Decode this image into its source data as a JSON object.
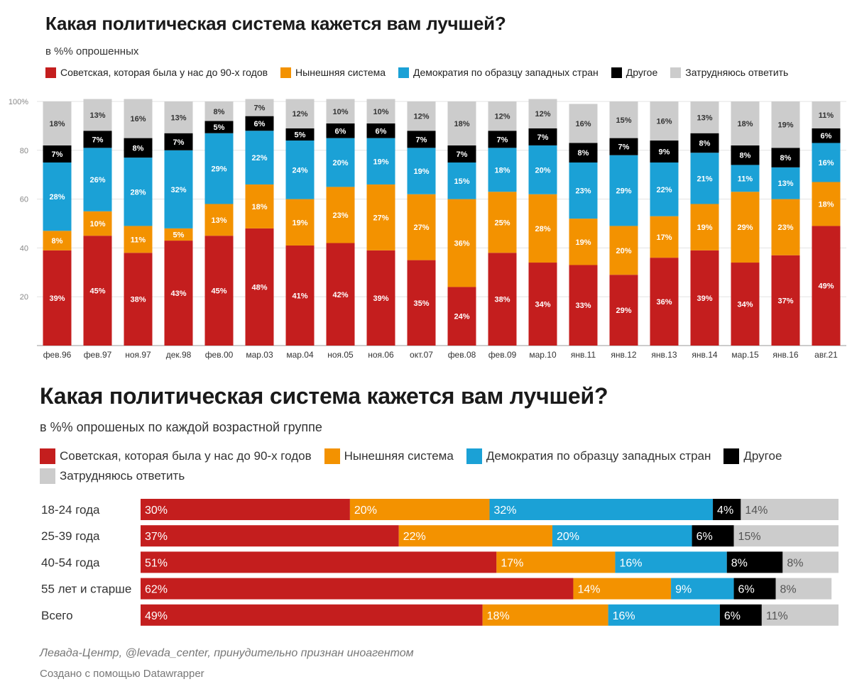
{
  "colors": {
    "soviet": "#c41e1e",
    "current": "#f39200",
    "western": "#1ba1d6",
    "other": "#000000",
    "unsure": "#cccccc"
  },
  "chart_top": {
    "title": "Какая политическая система кажется вам лучшей?",
    "subtitle": "в %% опрошенных",
    "legend": [
      {
        "key": "soviet",
        "label": "Советская, которая была у нас до 90-х годов"
      },
      {
        "key": "current",
        "label": "Нынешняя система"
      },
      {
        "key": "western",
        "label": "Демократия по образцу западных стран"
      },
      {
        "key": "other",
        "label": "Другое"
      },
      {
        "key": "unsure",
        "label": "Затрудняюсь ответить"
      }
    ]
  },
  "chart_bottom": {
    "title": "Какая политическая система кажется вам лучшей?",
    "subtitle": "в %% опрошеных по каждой возрастной группе",
    "legend": [
      {
        "key": "soviet",
        "label": "Советская, которая была у нас до 90-х годов"
      },
      {
        "key": "current",
        "label": "Нынешняя система"
      },
      {
        "key": "western",
        "label": "Демократия по образцу западных стран"
      },
      {
        "key": "other",
        "label": "Другое"
      },
      {
        "key": "unsure",
        "label": "Затрудняюсь ответить"
      }
    ]
  },
  "footer": {
    "source": "Левада-Центр, @levada_center, принудительно признан иноагентом",
    "credit": "Создано с помощью Datawrapper"
  },
  "chart_data": [
    {
      "type": "bar",
      "stacked": true,
      "orientation": "vertical",
      "ylim": [
        0,
        100
      ],
      "yticks": [
        20,
        40,
        60,
        80,
        100
      ],
      "ytick_labels": [
        "20",
        "40",
        "60",
        "80",
        "100%"
      ],
      "grid": true,
      "categories": [
        "фев.96",
        "фев.97",
        "ноя.97",
        "дек.98",
        "фев.00",
        "мар.03",
        "мар.04",
        "ноя.05",
        "ноя.06",
        "окт.07",
        "фев.08",
        "фев.09",
        "мар.10",
        "янв.11",
        "янв.12",
        "янв.13",
        "янв.14",
        "мар.15",
        "янв.16",
        "авг.21"
      ],
      "series": [
        {
          "name": "Советская, которая была у нас до 90-х годов",
          "key": "soviet",
          "values": [
            39,
            45,
            38,
            43,
            45,
            48,
            41,
            42,
            39,
            35,
            24,
            38,
            34,
            33,
            29,
            36,
            39,
            34,
            37,
            49
          ]
        },
        {
          "name": "Нынешняя система",
          "key": "current",
          "values": [
            8,
            10,
            11,
            5,
            13,
            18,
            19,
            23,
            27,
            27,
            36,
            25,
            28,
            19,
            20,
            17,
            19,
            29,
            23,
            18
          ]
        },
        {
          "name": "Демократия по образцу западных стран",
          "key": "western",
          "values": [
            28,
            26,
            28,
            32,
            29,
            22,
            24,
            20,
            19,
            19,
            15,
            18,
            20,
            23,
            29,
            22,
            21,
            11,
            13,
            16
          ]
        },
        {
          "name": "Другое",
          "key": "other",
          "values": [
            7,
            7,
            8,
            7,
            5,
            6,
            5,
            6,
            6,
            7,
            7,
            7,
            7,
            8,
            7,
            9,
            8,
            8,
            8,
            6
          ]
        },
        {
          "name": "Затрудняюсь ответить",
          "key": "unsure",
          "values": [
            18,
            13,
            16,
            13,
            8,
            7,
            12,
            10,
            10,
            12,
            18,
            12,
            12,
            16,
            15,
            16,
            13,
            18,
            19,
            11
          ]
        }
      ]
    },
    {
      "type": "bar",
      "stacked": true,
      "orientation": "horizontal",
      "xlim": [
        0,
        100
      ],
      "categories": [
        "18-24 года",
        "25-39 года",
        "40-54 года",
        "55 лет и старше",
        "Всего"
      ],
      "series": [
        {
          "name": "Советская, которая была у нас до 90-х годов",
          "key": "soviet",
          "values": [
            30,
            37,
            51,
            62,
            49
          ]
        },
        {
          "name": "Нынешняя система",
          "key": "current",
          "values": [
            20,
            22,
            17,
            14,
            18
          ]
        },
        {
          "name": "Демократия по образцу западных стран",
          "key": "western",
          "values": [
            32,
            20,
            16,
            9,
            16
          ]
        },
        {
          "name": "Другое",
          "key": "other",
          "values": [
            4,
            6,
            8,
            6,
            6
          ]
        },
        {
          "name": "Затрудняюсь ответить",
          "key": "unsure",
          "values": [
            14,
            15,
            8,
            8,
            11
          ]
        }
      ]
    }
  ]
}
